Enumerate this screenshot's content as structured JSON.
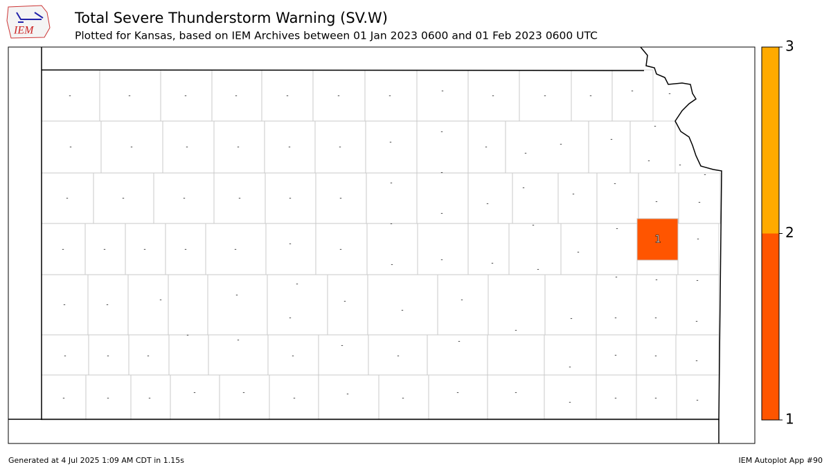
{
  "header": {
    "title": "Total Severe Thunderstorm Warning (SV.W)",
    "subtitle": "Plotted for Kansas, based on IEM Archives  between 01 Jan 2023 0600 and 01 Feb 2023 0600 UTC",
    "logo_text": "IEM"
  },
  "map": {
    "no_data_label": "-",
    "highlight": {
      "label": "1",
      "value": 1,
      "color": "#ff5500"
    }
  },
  "colorbar": {
    "ticks": [
      1,
      2,
      3
    ],
    "colors": [
      "#ff5500",
      "#ffaa00"
    ]
  },
  "footer": {
    "left": "Generated at 4 Jul 2025 1:09 AM CDT in 1.15s",
    "right": "IEM Autoplot App #90"
  }
}
